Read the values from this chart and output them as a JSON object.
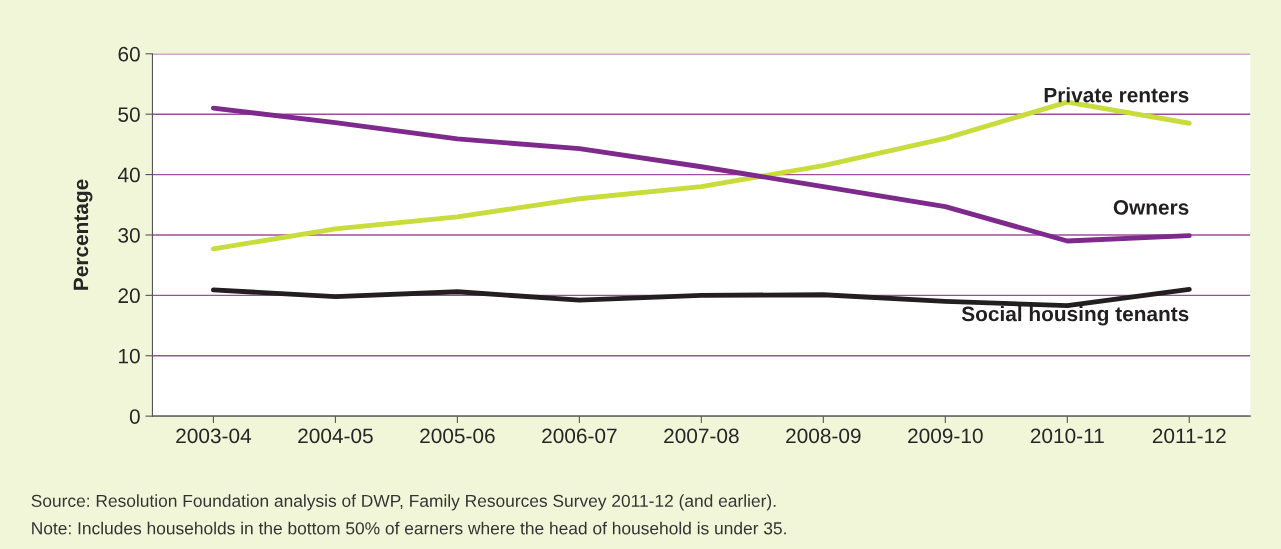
{
  "chart_data": {
    "type": "line",
    "ylabel": "Percentage",
    "categories": [
      "2003-04",
      "2004-05",
      "2005-06",
      "2006-07",
      "2007-08",
      "2008-09",
      "2009-10",
      "2010-11",
      "2011-12"
    ],
    "series": [
      {
        "name": "Private renters",
        "color": "#c8dc3c",
        "values": [
          27.7,
          31,
          33,
          36,
          38,
          41.5,
          46,
          52,
          48.5
        ]
      },
      {
        "name": "Owners",
        "color": "#7d2a8c",
        "values": [
          51,
          48.6,
          45.9,
          44.3,
          41.3,
          38,
          34.7,
          29,
          29.9
        ]
      },
      {
        "name": "Social housing tenants",
        "color": "#231f20",
        "values": [
          20.9,
          19.8,
          20.6,
          19.2,
          20,
          20.1,
          19,
          18.3,
          21
        ]
      }
    ],
    "ylim": [
      0,
      60
    ],
    "yticks": [
      0,
      10,
      20,
      30,
      40,
      50,
      60
    ],
    "grid": "y",
    "legend": false,
    "marker": "none",
    "line_style": "solid",
    "annotations": [
      "Source: Resolution Foundation analysis of DWP, Family Resources Survey 2011-12 (and earlier).",
      "Note: Includes households in the bottom 50% of earners where the head of household is under 35."
    ]
  }
}
